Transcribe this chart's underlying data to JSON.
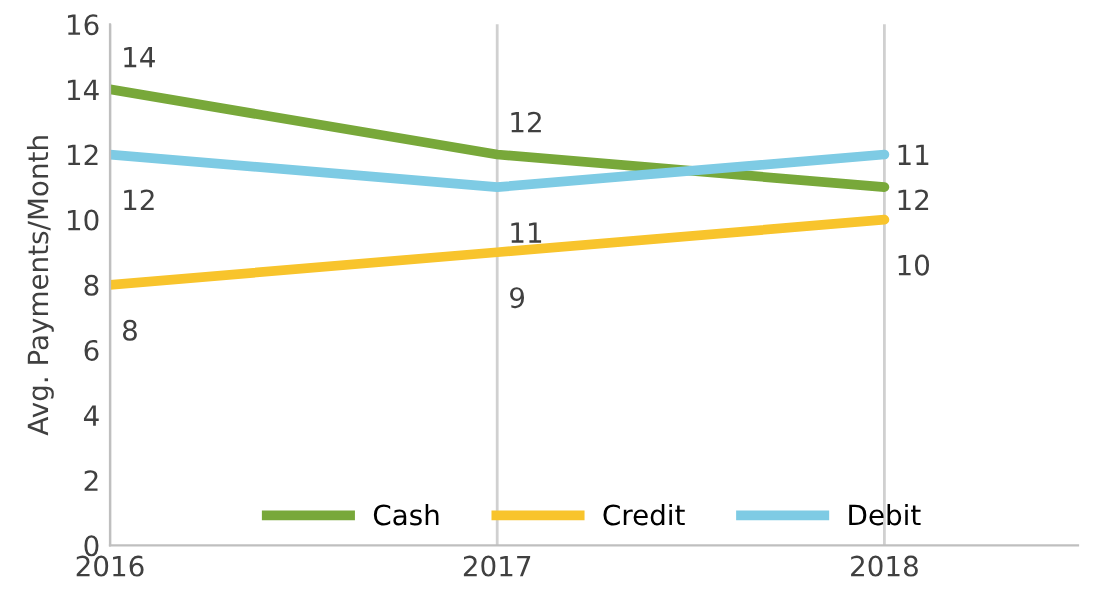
{
  "chart_data": {
    "type": "line",
    "ylabel": "Avg. Payments/Month",
    "x": [
      2016,
      2017,
      2018
    ],
    "series": [
      {
        "name": "Cash",
        "color": "#78a83a",
        "values": [
          14,
          12,
          11
        ]
      },
      {
        "name": "Credit",
        "color": "#f8c42c",
        "values": [
          8,
          9,
          10
        ]
      },
      {
        "name": "Debit",
        "color": "#7ecbe4",
        "values": [
          12,
          11,
          12
        ]
      }
    ],
    "xlim": [
      2016,
      2018.5
    ],
    "xticks": [
      2016,
      2017,
      2018
    ],
    "ylim": [
      0,
      16
    ],
    "yticks": [
      0,
      2,
      4,
      6,
      8,
      10,
      12,
      14,
      16
    ],
    "grid": "x",
    "data_labels": true,
    "legend": "bottom",
    "marker": "none",
    "line_style": "solid"
  }
}
